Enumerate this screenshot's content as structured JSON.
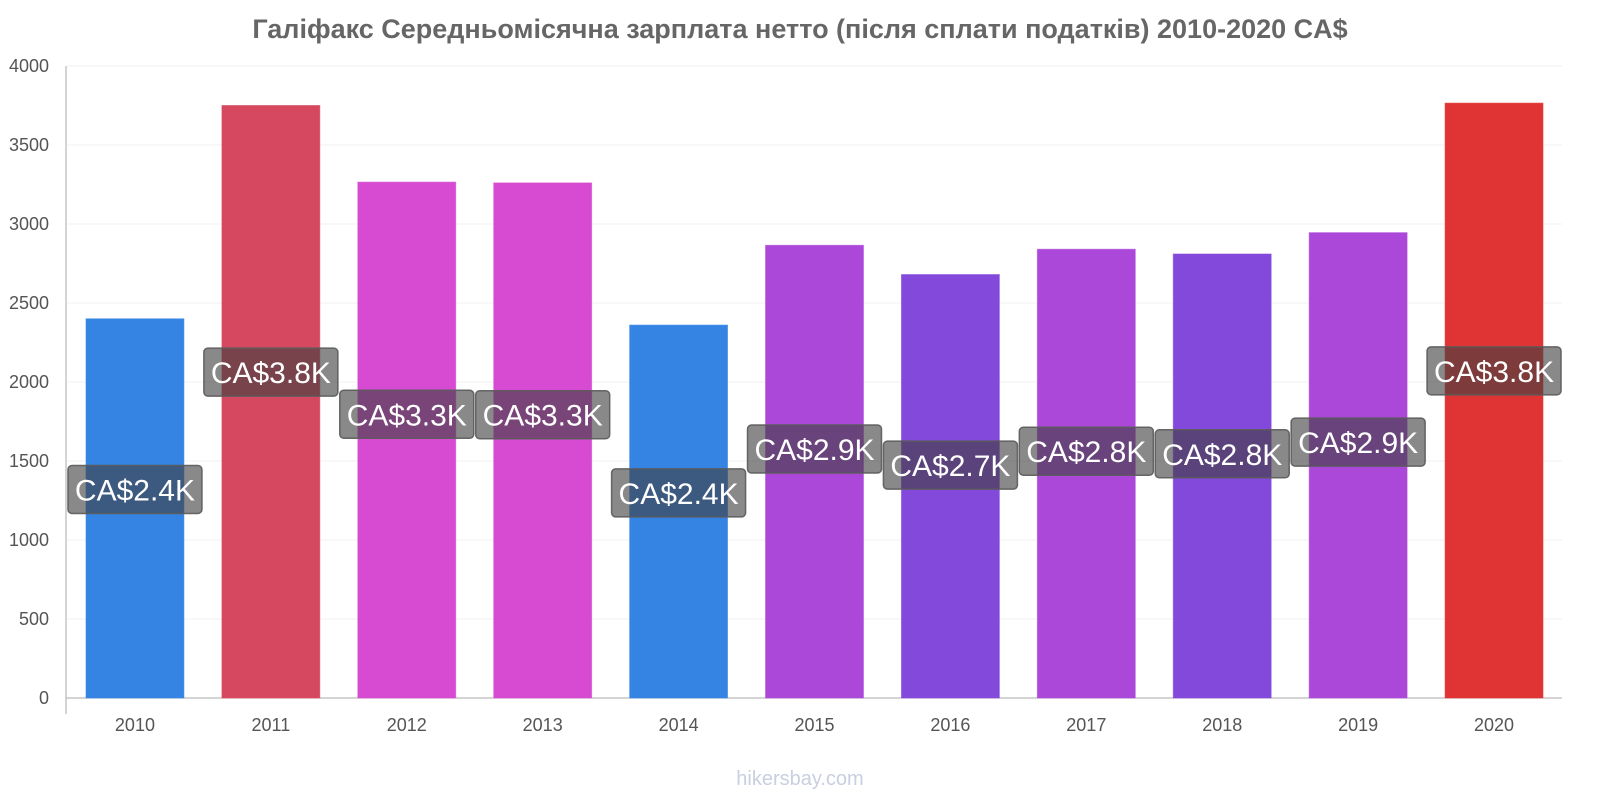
{
  "chart_data": {
    "type": "bar",
    "title": "Галіфакс Середньомісячна зарплата нетто (після сплати податків) 2010-2020 CA$",
    "xlabel": "",
    "ylabel": "",
    "categories": [
      "2010",
      "2011",
      "2012",
      "2013",
      "2014",
      "2015",
      "2016",
      "2017",
      "2018",
      "2019",
      "2020"
    ],
    "values": [
      2400,
      3750,
      3265,
      3260,
      2360,
      2865,
      2680,
      2840,
      2810,
      2945,
      3765
    ],
    "data_labels": [
      "CA$2.4K",
      "CA$3.8K",
      "CA$3.3K",
      "CA$3.3K",
      "CA$2.4K",
      "CA$2.9K",
      "CA$2.7K",
      "CA$2.8K",
      "CA$2.8K",
      "CA$2.9K",
      "CA$3.8K"
    ],
    "bar_colors": [
      "#3584e4",
      "#d6485f",
      "#d64bd1",
      "#d64bd1",
      "#3584e4",
      "#ab47d9",
      "#8349da",
      "#ab47d9",
      "#8349da",
      "#ab47d9",
      "#e03434"
    ],
    "ylim": [
      0,
      4000
    ],
    "yticks": [
      0,
      500,
      1000,
      1500,
      2000,
      2500,
      3000,
      3500,
      4000
    ],
    "grid": true,
    "legend": "none"
  },
  "watermark": "hikersbay.com"
}
